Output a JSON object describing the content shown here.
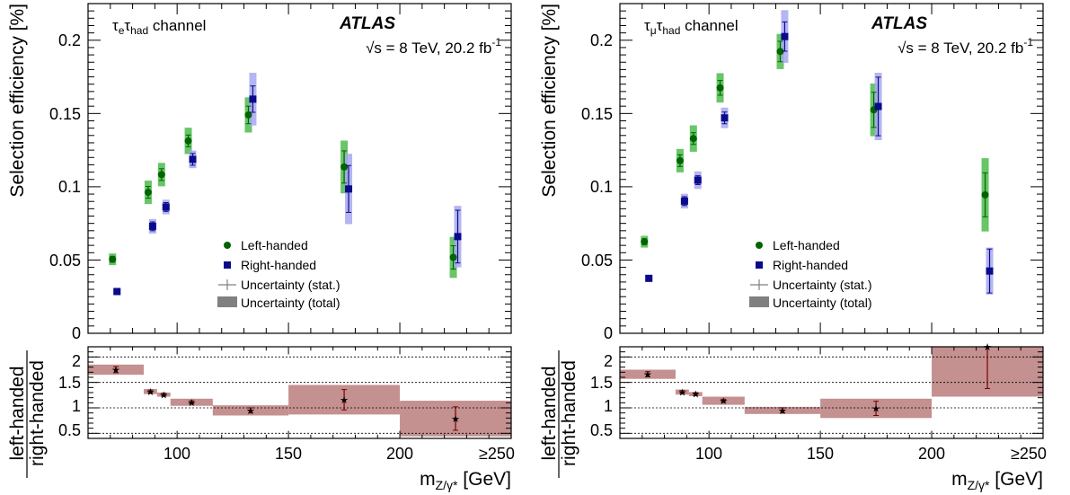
{
  "chart_data": [
    {
      "type": "scatter",
      "panel": "left",
      "channel": {
        "pre": "τ",
        "sub1": "e",
        "mid": "τ",
        "sub2": "had",
        "post": " channel"
      },
      "atlas_label": "ATLAS",
      "energy": {
        "sqrt": "√",
        "s_text": "s = 8 TeV, 20.2 fb",
        "sup": "-1"
      },
      "ylabel": "Selection efficiency [%]",
      "xlabel": {
        "m": "m",
        "sub": "Z/γ*",
        "unit": " [GeV]"
      },
      "ratio_ylabel": {
        "num": "left-handed",
        "den": "right-handed"
      },
      "x_ticks": [
        "100",
        "150",
        "200",
        "≥250"
      ],
      "y_ticks": [
        "0",
        "0.05",
        "0.1",
        "0.15",
        "0.2"
      ],
      "ratio_y_ticks": [
        "0.5",
        "1",
        "1.5",
        "2"
      ],
      "xlim": [
        60,
        250
      ],
      "ylim": [
        0,
        0.225
      ],
      "ratio_ylim": [
        0.4,
        2.2
      ],
      "legend": [
        "Left-handed",
        "Right-handed",
        "Uncertainty (stat.)",
        "Uncertainty (total)"
      ],
      "series": [
        {
          "name": "Left-handed",
          "color": "#006400",
          "band_color": "#4dbb4d",
          "points": [
            {
              "x": 71,
              "y": 0.0505,
              "stat": 0.002,
              "tot": 0.004
            },
            {
              "x": 87,
              "y": 0.0962,
              "stat": 0.004,
              "tot": 0.008
            },
            {
              "x": 93,
              "y": 0.1083,
              "stat": 0.004,
              "tot": 0.008
            },
            {
              "x": 105,
              "y": 0.1313,
              "stat": 0.004,
              "tot": 0.009
            },
            {
              "x": 132,
              "y": 0.149,
              "stat": 0.006,
              "tot": 0.012
            },
            {
              "x": 175,
              "y": 0.1135,
              "stat": 0.011,
              "tot": 0.018
            },
            {
              "x": 224,
              "y": 0.0518,
              "stat": 0.008,
              "tot": 0.014
            }
          ]
        },
        {
          "name": "Right-handed",
          "color": "#0a0a8c",
          "band_color": "#a8a8f0",
          "points": [
            {
              "x": 73,
              "y": 0.0285,
              "stat": 0.001,
              "tot": 0.002
            },
            {
              "x": 89,
              "y": 0.073,
              "stat": 0.003,
              "tot": 0.005
            },
            {
              "x": 95,
              "y": 0.0862,
              "stat": 0.003,
              "tot": 0.005
            },
            {
              "x": 107,
              "y": 0.1187,
              "stat": 0.004,
              "tot": 0.006
            },
            {
              "x": 134,
              "y": 0.1598,
              "stat": 0.009,
              "tot": 0.018
            },
            {
              "x": 177,
              "y": 0.0985,
              "stat": 0.016,
              "tot": 0.024
            },
            {
              "x": 226,
              "y": 0.066,
              "stat": 0.018,
              "tot": 0.021
            }
          ]
        }
      ],
      "ratio": {
        "color": "#7a0000",
        "band_color": "#c49090",
        "bins": [
          {
            "x0": 60,
            "x1": 85,
            "y": 1.75,
            "stat": 0.06,
            "tot": 0.1
          },
          {
            "x0": 85,
            "x1": 91,
            "y": 1.32,
            "stat": 0.03,
            "tot": 0.05
          },
          {
            "x0": 91,
            "x1": 97,
            "y": 1.26,
            "stat": 0.03,
            "tot": 0.04
          },
          {
            "x0": 97,
            "x1": 116,
            "y": 1.11,
            "stat": 0.03,
            "tot": 0.07
          },
          {
            "x0": 116,
            "x1": 150,
            "y": 0.95,
            "stat": 0.05,
            "tot": 0.1
          },
          {
            "x0": 150,
            "x1": 200,
            "y": 1.16,
            "stat": 0.2,
            "tot": 0.29
          },
          {
            "x0": 200,
            "x1": 250,
            "y": 0.79,
            "stat": 0.23,
            "tot": 0.35
          }
        ]
      }
    },
    {
      "type": "scatter",
      "panel": "right",
      "channel": {
        "pre": "τ",
        "sub1": "μ",
        "mid": "τ",
        "sub2": "had",
        "post": " channel"
      },
      "atlas_label": "ATLAS",
      "energy": {
        "sqrt": "√",
        "s_text": "s = 8 TeV, 20.2 fb",
        "sup": "-1"
      },
      "ylabel": "Selection efficiency [%]",
      "xlabel": {
        "m": "m",
        "sub": "Z/γ*",
        "unit": " [GeV]"
      },
      "ratio_ylabel": {
        "num": "left-handed",
        "den": "right-handed"
      },
      "x_ticks": [
        "100",
        "150",
        "200",
        "≥250"
      ],
      "y_ticks": [
        "0",
        "0.05",
        "0.1",
        "0.15",
        "0.2"
      ],
      "ratio_y_ticks": [
        "0.5",
        "1",
        "1.5",
        "2"
      ],
      "xlim": [
        60,
        250
      ],
      "ylim": [
        0,
        0.225
      ],
      "ratio_ylim": [
        0.4,
        2.2
      ],
      "legend": [
        "Left-handed",
        "Right-handed",
        "Uncertainty (stat.)",
        "Uncertainty (total)"
      ],
      "series": [
        {
          "name": "Left-handed",
          "color": "#006400",
          "band_color": "#4dbb4d",
          "points": [
            {
              "x": 71,
              "y": 0.0625,
              "stat": 0.002,
              "tot": 0.004
            },
            {
              "x": 87,
              "y": 0.1178,
              "stat": 0.004,
              "tot": 0.008
            },
            {
              "x": 93,
              "y": 0.1329,
              "stat": 0.004,
              "tot": 0.009
            },
            {
              "x": 105,
              "y": 0.1675,
              "stat": 0.005,
              "tot": 0.01
            },
            {
              "x": 132,
              "y": 0.1923,
              "stat": 0.007,
              "tot": 0.012
            },
            {
              "x": 174,
              "y": 0.1525,
              "stat": 0.012,
              "tot": 0.018
            },
            {
              "x": 224,
              "y": 0.0945,
              "stat": 0.015,
              "tot": 0.025
            }
          ]
        },
        {
          "name": "Right-handed",
          "color": "#0a0a8c",
          "band_color": "#a8a8f0",
          "points": [
            {
              "x": 73,
              "y": 0.0375,
              "stat": 0.001,
              "tot": 0.002
            },
            {
              "x": 89,
              "y": 0.0902,
              "stat": 0.003,
              "tot": 0.005
            },
            {
              "x": 95,
              "y": 0.1045,
              "stat": 0.003,
              "tot": 0.006
            },
            {
              "x": 107,
              "y": 0.147,
              "stat": 0.004,
              "tot": 0.007
            },
            {
              "x": 134,
              "y": 0.2025,
              "stat": 0.01,
              "tot": 0.018
            },
            {
              "x": 176,
              "y": 0.1548,
              "stat": 0.02,
              "tot": 0.023
            },
            {
              "x": 226,
              "y": 0.0425,
              "stat": 0.015,
              "tot": 0.016
            }
          ]
        }
      ],
      "ratio": {
        "color": "#7a0000",
        "band_color": "#c49090",
        "bins": [
          {
            "x0": 60,
            "x1": 85,
            "y": 1.66,
            "stat": 0.05,
            "tot": 0.09
          },
          {
            "x0": 85,
            "x1": 91,
            "y": 1.31,
            "stat": 0.03,
            "tot": 0.05
          },
          {
            "x0": 91,
            "x1": 97,
            "y": 1.27,
            "stat": 0.03,
            "tot": 0.04
          },
          {
            "x0": 97,
            "x1": 116,
            "y": 1.14,
            "stat": 0.03,
            "tot": 0.08
          },
          {
            "x0": 116,
            "x1": 150,
            "y": 0.95,
            "stat": 0.05,
            "tot": 0.07
          },
          {
            "x0": 150,
            "x1": 200,
            "y": 0.99,
            "stat": 0.14,
            "tot": 0.19
          },
          {
            "x0": 200,
            "x1": 250,
            "y": 2.22,
            "stat": 0.84,
            "tot": 1.0
          }
        ]
      }
    }
  ]
}
